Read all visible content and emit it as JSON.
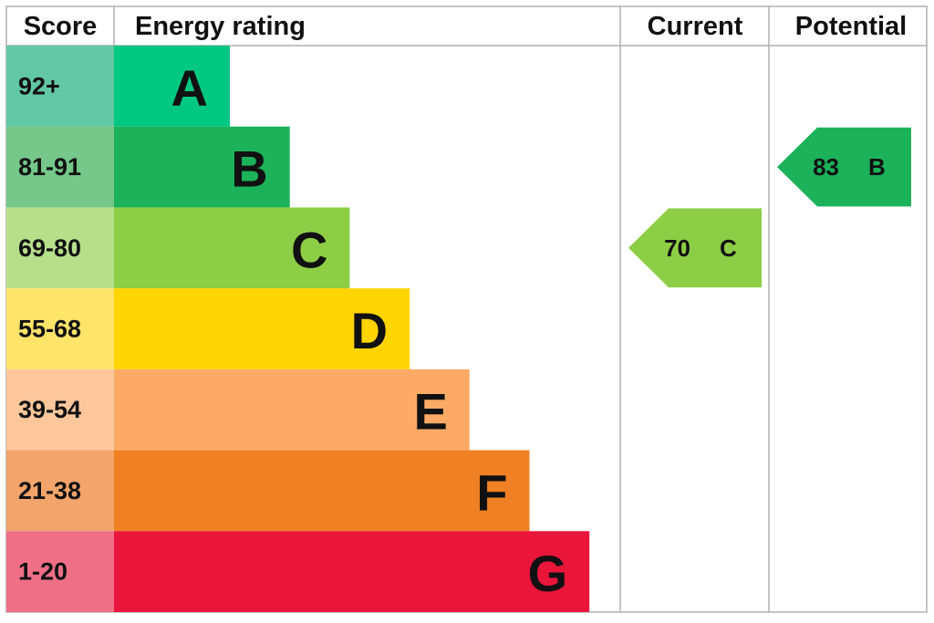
{
  "header": {
    "score": "Score",
    "rating": "Energy rating",
    "current": "Current",
    "potential": "Potential"
  },
  "bands": [
    {
      "score": "92+",
      "letter": "A",
      "color": "#00c781",
      "score_color": "#62c7a5"
    },
    {
      "score": "81-91",
      "letter": "B",
      "color": "#1cb25a",
      "score_color": "#75c78a"
    },
    {
      "score": "69-80",
      "letter": "C",
      "color": "#8dce46",
      "score_color": "#b6df8c"
    },
    {
      "score": "55-68",
      "letter": "D",
      "color": "#ffd500",
      "score_color": "#ffe46a"
    },
    {
      "score": "39-54",
      "letter": "E",
      "color": "#fcaa65",
      "score_color": "#fdc79b"
    },
    {
      "score": "21-38",
      "letter": "F",
      "color": "#ef8023",
      "score_color": "#f3a46a"
    },
    {
      "score": "1-20",
      "letter": "G",
      "color": "#e9153b",
      "score_color": "#ef6f86"
    }
  ],
  "current": {
    "value": 70,
    "letter": "C",
    "color": "#8dce46"
  },
  "potential": {
    "value": 83,
    "letter": "B",
    "color": "#1cb25a"
  }
}
